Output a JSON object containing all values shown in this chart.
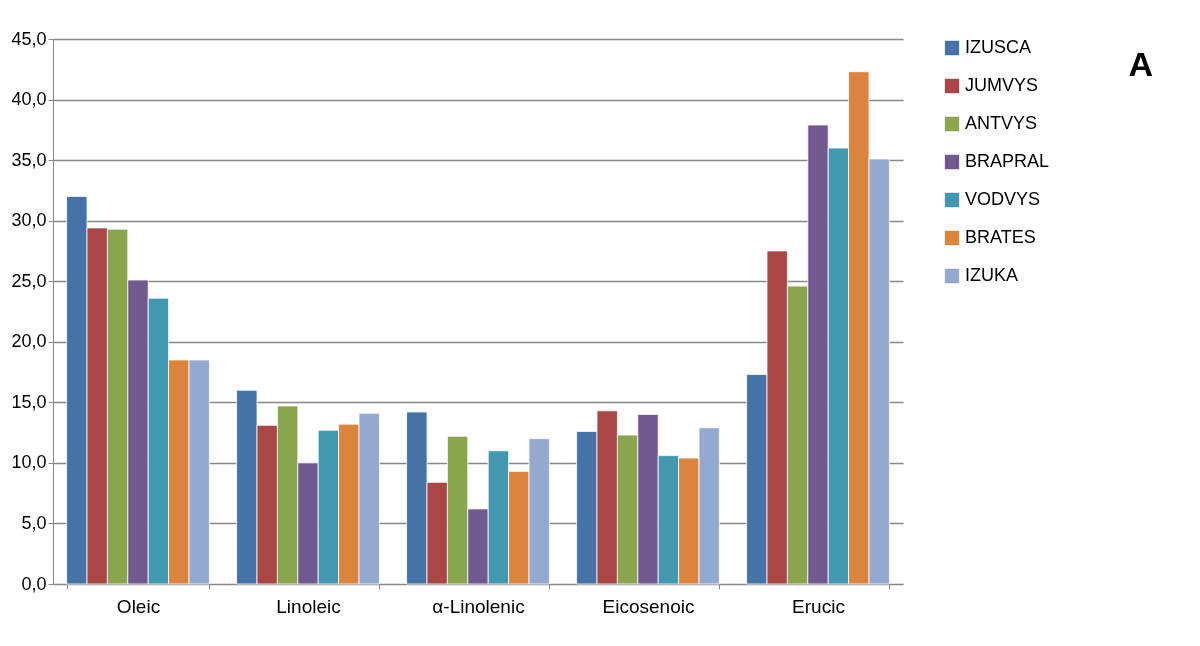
{
  "chart_data": {
    "type": "bar",
    "categories": [
      "Oleic",
      "Linoleic",
      "α-Linolenic",
      "Eicosenoic",
      "Erucic"
    ],
    "series": [
      {
        "name": "IZUSCA",
        "color": "#4572a7",
        "values": [
          32.0,
          16.0,
          14.2,
          12.6,
          17.3
        ]
      },
      {
        "name": "JUMVYS",
        "color": "#aa4643",
        "values": [
          29.4,
          13.1,
          8.4,
          14.3,
          27.5
        ]
      },
      {
        "name": "ANTVYS",
        "color": "#89a54e",
        "values": [
          29.3,
          14.7,
          12.2,
          12.3,
          24.6
        ]
      },
      {
        "name": "BRAPRAL",
        "color": "#71588f",
        "values": [
          25.1,
          10.0,
          6.2,
          14.0,
          37.9
        ]
      },
      {
        "name": "VODVYS",
        "color": "#4198af",
        "values": [
          23.6,
          12.7,
          11.0,
          10.6,
          36.0
        ]
      },
      {
        "name": "BRATES",
        "color": "#db843d",
        "values": [
          18.5,
          13.2,
          9.3,
          10.4,
          42.3
        ]
      },
      {
        "name": "IZUKA",
        "color": "#93a9cf",
        "values": [
          18.5,
          14.1,
          12.0,
          12.9,
          35.1
        ]
      }
    ],
    "ylim": [
      0,
      45
    ],
    "yticks": [
      {
        "value": 0,
        "label": "0,0"
      },
      {
        "value": 5,
        "label": "5,0"
      },
      {
        "value": 10,
        "label": "10,0"
      },
      {
        "value": 15,
        "label": "15,0"
      },
      {
        "value": 20,
        "label": "20,0"
      },
      {
        "value": 25,
        "label": "25,0"
      },
      {
        "value": 30,
        "label": "30,0"
      },
      {
        "value": 35,
        "label": "35,0"
      },
      {
        "value": 40,
        "label": "40,0"
      },
      {
        "value": 45,
        "label": "45,0"
      }
    ],
    "grid": "y",
    "legend": "right",
    "annotations": [
      "A"
    ]
  }
}
